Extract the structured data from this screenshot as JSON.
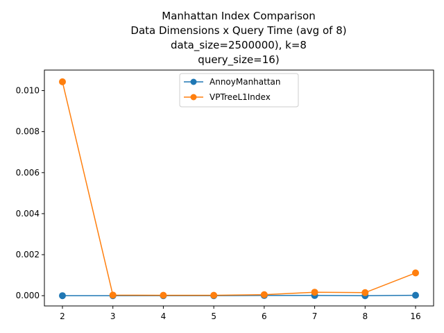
{
  "chart_data": {
    "type": "line",
    "title_lines": [
      "Manhattan Index Comparison",
      "Data Dimensions x Query Time (avg of 8)",
      "data_size=2500000), k=8",
      "query_size=16)"
    ],
    "xlabel": "",
    "ylabel": "",
    "categories": [
      "2",
      "3",
      "4",
      "5",
      "6",
      "7",
      "8",
      "16"
    ],
    "yticks": [
      "0.000",
      "0.002",
      "0.004",
      "0.006",
      "0.008",
      "0.010"
    ],
    "ytick_values": [
      0.0,
      0.002,
      0.004,
      0.006,
      0.008,
      0.01
    ],
    "ylim": [
      -0.0005,
      0.011
    ],
    "grid": false,
    "legend_position": "upper center",
    "series": [
      {
        "name": "AnnoyManhattan",
        "color": "#1f77b4",
        "marker": "circle",
        "values": [
          0.0,
          0.0,
          0.0,
          0.0,
          1e-05,
          1e-05,
          0.0,
          2e-05
        ]
      },
      {
        "name": "VPTreeL1Index",
        "color": "#ff7f0e",
        "marker": "circle",
        "values": [
          0.01043,
          3e-05,
          2e-05,
          2e-05,
          5e-05,
          0.00017,
          0.00015,
          0.00111
        ]
      }
    ]
  }
}
